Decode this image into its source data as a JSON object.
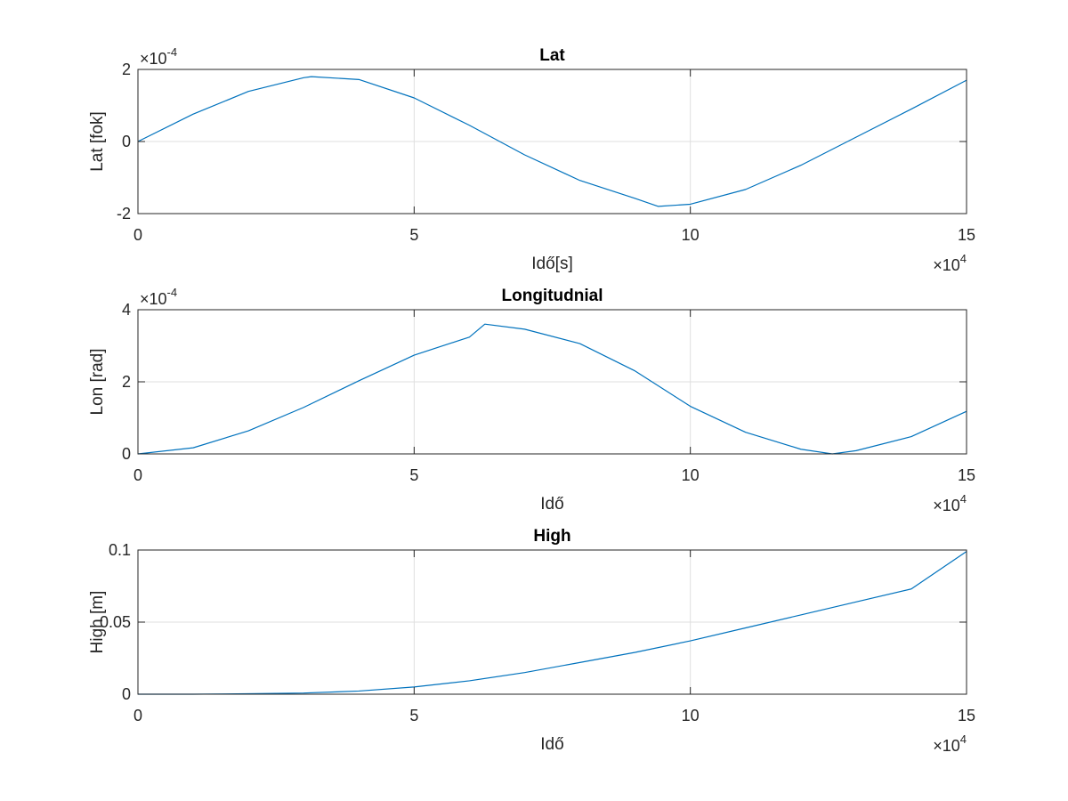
{
  "chart_data": [
    {
      "type": "line",
      "title": "Lat",
      "xlabel": "Idő[s]",
      "ylabel": "Lat [fok]",
      "x_multiplier": "10^4",
      "y_multiplier": "10^-4",
      "xlim": [
        0,
        15
      ],
      "ylim": [
        -2,
        2
      ],
      "x_ticks": [
        "0",
        "5",
        "10",
        "15"
      ],
      "y_ticks": [
        "-2",
        "0",
        "2"
      ],
      "grid": true,
      "series": [
        {
          "color": "#0072BD",
          "x": [
            0,
            1,
            2,
            3,
            3.14,
            4,
            5,
            6,
            7,
            8,
            9,
            9.42,
            10,
            11,
            12,
            13,
            14,
            15
          ],
          "y": [
            0,
            0.76,
            1.39,
            1.77,
            1.8,
            1.72,
            1.21,
            0.45,
            -0.37,
            -1.08,
            -1.58,
            -1.8,
            -1.74,
            -1.33,
            -0.66,
            0.12,
            0.9,
            1.7
          ]
        }
      ]
    },
    {
      "type": "line",
      "title": "Longitudnial",
      "xlabel": "Idő",
      "ylabel": "Lon [rad]",
      "x_multiplier": "10^4",
      "y_multiplier": "10^-4",
      "xlim": [
        0,
        15
      ],
      "ylim": [
        0,
        4
      ],
      "x_ticks": [
        "0",
        "5",
        "10",
        "15"
      ],
      "y_ticks": [
        "0",
        "2",
        "4"
      ],
      "grid": true,
      "series": [
        {
          "color": "#0072BD",
          "x": [
            0,
            1,
            2,
            3,
            4,
            5,
            6,
            6.28,
            7,
            8,
            9,
            10,
            11,
            12,
            12.57,
            13,
            14,
            15
          ],
          "y": [
            0,
            0.17,
            0.64,
            1.29,
            2.03,
            2.74,
            3.24,
            3.6,
            3.46,
            3.06,
            2.3,
            1.32,
            0.6,
            0.13,
            0,
            0.09,
            0.48,
            1.18
          ]
        }
      ]
    },
    {
      "type": "line",
      "title": "High",
      "xlabel": "Idő",
      "ylabel": "High [m]",
      "x_multiplier": "10^4",
      "xlim": [
        0,
        15
      ],
      "ylim": [
        0,
        0.1
      ],
      "x_ticks": [
        "0",
        "5",
        "10",
        "15"
      ],
      "y_ticks": [
        "0",
        "0.05",
        "0.1"
      ],
      "grid": true,
      "series": [
        {
          "color": "#0072BD",
          "x": [
            0,
            1,
            2,
            3,
            4,
            5,
            6,
            7,
            8,
            9,
            10,
            11,
            12,
            13,
            14,
            15
          ],
          "y": [
            0,
            0,
            0.0003,
            0.0008,
            0.0022,
            0.005,
            0.0093,
            0.015,
            0.022,
            0.029,
            0.037,
            0.046,
            0.055,
            0.064,
            0.073,
            0.099
          ]
        }
      ]
    }
  ]
}
